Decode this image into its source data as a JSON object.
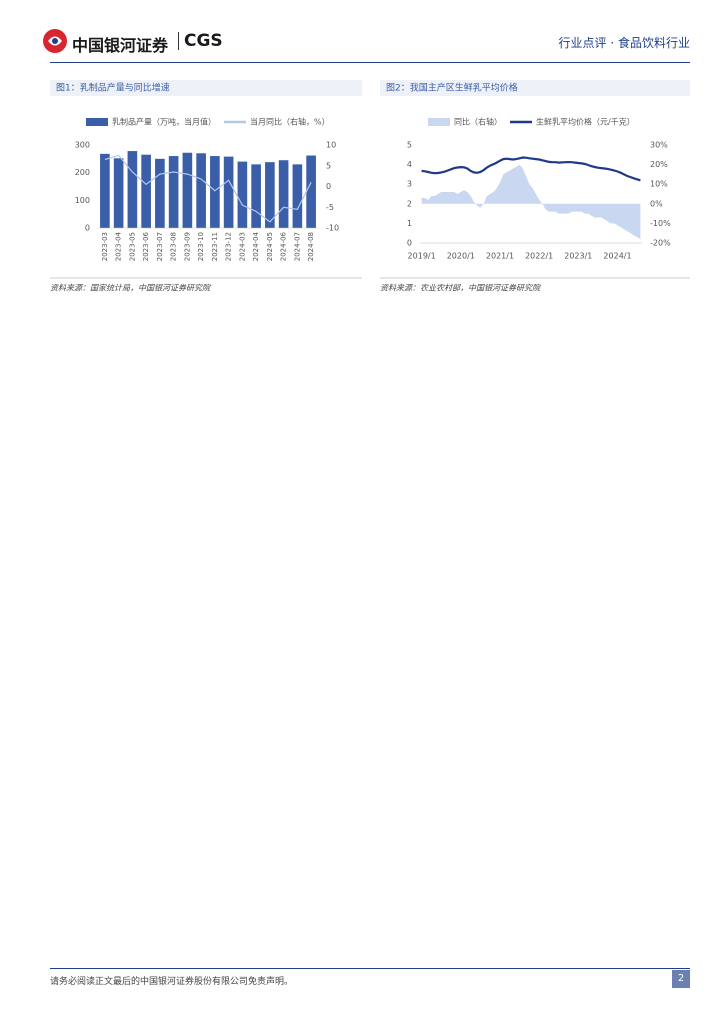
{
  "header": {
    "brand": "中国银河证券",
    "brand_en": "CGS",
    "section": "行业点评 · 食品饮料行业"
  },
  "chart_data": [
    {
      "type": "combo",
      "title": "图1：乳制品产量与同比增速",
      "categories": [
        "2023-03",
        "2023-04",
        "2023-05",
        "2023-06",
        "2023-07",
        "2023-08",
        "2023-09",
        "2023-10",
        "2023-11",
        "2023-12",
        "2024-03",
        "2024-04",
        "2024-05",
        "2024-06",
        "2024-07",
        "2024-08"
      ],
      "series": [
        {
          "name": "乳制品产量（万吨，当月值）",
          "color": "#3a5ea8",
          "kind": "bar",
          "values": [
            268,
            252,
            278,
            265,
            250,
            260,
            272,
            270,
            260,
            258,
            240,
            230,
            238,
            245,
            230,
            262
          ]
        },
        {
          "name": "当月同比（右轴，%）",
          "color": "#b4c7e7",
          "kind": "line",
          "axis": "y2",
          "values": [
            6.5,
            7.5,
            3.5,
            0.5,
            3.0,
            3.5,
            3.0,
            1.8,
            -1.0,
            1.5,
            -4.5,
            -6.0,
            -8.5,
            -5.0,
            -5.5,
            1.0
          ]
        }
      ],
      "ylim": [
        0,
        300
      ],
      "yticks": [
        0,
        100,
        200,
        300
      ],
      "y2lim": [
        -10,
        10
      ],
      "y2ticks": [
        -10,
        -5,
        0,
        5,
        10
      ],
      "source": "资料来源：国家统计局，中国银河证券研究院"
    },
    {
      "type": "line",
      "title": "图2：我国主产区生鲜乳平均价格",
      "x": [
        "2019/1",
        null,
        null,
        null,
        null,
        null,
        null,
        null,
        null,
        null,
        null,
        null,
        "2020/1",
        null,
        null,
        null,
        null,
        null,
        null,
        null,
        null,
        null,
        null,
        null,
        "2021/1",
        null,
        null,
        null,
        null,
        null,
        null,
        null,
        null,
        null,
        null,
        null,
        "2022/1",
        null,
        null,
        null,
        null,
        null,
        null,
        null,
        null,
        null,
        null,
        null,
        "2023/1",
        null,
        null,
        null,
        null,
        null,
        null,
        null,
        null,
        null,
        null,
        null,
        "2024/1",
        null,
        null,
        null,
        null,
        null,
        null,
        null
      ],
      "series": [
        {
          "name": "同比（右轴）",
          "color": "#c9d8f0",
          "kind": "area",
          "axis": "y2",
          "values": [
            3,
            3,
            2,
            4,
            4,
            5,
            6,
            6,
            6,
            6,
            6,
            5,
            6,
            7,
            6,
            4,
            1,
            -1,
            -2,
            0,
            4,
            5,
            6,
            8,
            11,
            15,
            16,
            17,
            18,
            19,
            20,
            18,
            14,
            10,
            8,
            5,
            2,
            0,
            -3,
            -4,
            -4,
            -4,
            -5,
            -5,
            -5,
            -5,
            -4,
            -4,
            -4,
            -4,
            -5,
            -5,
            -6,
            -7,
            -7,
            -7,
            -8,
            -9,
            -10,
            -10,
            -11,
            -12,
            -13,
            -14,
            -15,
            -16,
            -17,
            -18
          ]
        },
        {
          "name": "生鲜乳平均价格（元/千克）",
          "color": "#1f3a8a",
          "kind": "line",
          "values": [
            3.68,
            3.66,
            3.62,
            3.58,
            3.56,
            3.57,
            3.6,
            3.64,
            3.7,
            3.76,
            3.82,
            3.85,
            3.87,
            3.86,
            3.8,
            3.68,
            3.6,
            3.58,
            3.62,
            3.72,
            3.85,
            3.95,
            4.02,
            4.1,
            4.2,
            4.28,
            4.3,
            4.28,
            4.26,
            4.28,
            4.32,
            4.36,
            4.35,
            4.32,
            4.3,
            4.28,
            4.26,
            4.22,
            4.18,
            4.14,
            4.12,
            4.12,
            4.1,
            4.11,
            4.12,
            4.13,
            4.12,
            4.1,
            4.08,
            4.06,
            4.03,
            3.98,
            3.92,
            3.88,
            3.84,
            3.82,
            3.8,
            3.78,
            3.74,
            3.7,
            3.65,
            3.58,
            3.5,
            3.42,
            3.36,
            3.3,
            3.25,
            3.2
          ]
        }
      ],
      "ylim": [
        0,
        5
      ],
      "yticks": [
        0,
        1,
        2,
        3,
        4,
        5
      ],
      "y2lim": [
        -20,
        30
      ],
      "y2ticks": [
        {
          "value": -20,
          "label": "-20%"
        },
        {
          "value": -10,
          "label": "-10%"
        },
        {
          "value": 0,
          "label": "0%"
        },
        {
          "value": 10,
          "label": "10%"
        },
        {
          "value": 20,
          "label": "20%"
        },
        {
          "value": 30,
          "label": "30%"
        }
      ],
      "source": "资料来源：农业农村部，中国银河证券研究院"
    }
  ],
  "footer": {
    "disclaimer": "请务必阅读正文最后的中国银河证券股份有限公司免责声明。",
    "page": "2"
  }
}
